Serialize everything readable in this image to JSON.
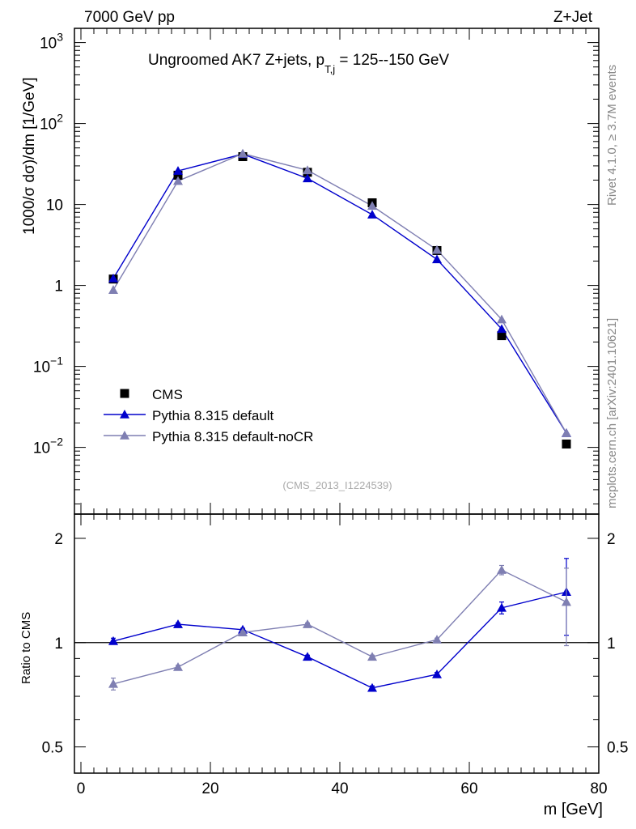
{
  "header": {
    "left": "7000 GeV pp",
    "right": "Z+Jet"
  },
  "side_labels": {
    "rivet": "Rivet 4.1.0, ≥ 3.7M events",
    "mcplots": "mcplots.cern.ch [arXiv:2401.10621]"
  },
  "colors": {
    "cms": "#000000",
    "default": "#0000cc",
    "nocr": "#7f7fb2"
  },
  "chart_data": [
    {
      "type": "line",
      "panel": "main",
      "title_main": "Ungroomed AK7 Z+jets, p",
      "title_sub": "T,j",
      "title_tail": " = 125--150 GeV",
      "ylabel": "1000/σ  dσ)/dm [1/GeV]",
      "yscale": "log",
      "ylim": [
        0.0015,
        1500
      ],
      "xlim": [
        -1,
        80
      ],
      "watermark": "(CMS_2013_I1224539)",
      "x_ticks": [
        0,
        20,
        40,
        60,
        80
      ],
      "y_tick_labels": [
        {
          "value": 1000,
          "base": "10",
          "exp": "3"
        },
        {
          "value": 100,
          "base": "10",
          "exp": "2"
        },
        {
          "value": 10,
          "base": "10",
          "exp": ""
        },
        {
          "value": 1,
          "base": "1",
          "exp": ""
        },
        {
          "value": 0.1,
          "base": "10",
          "exp": "−1"
        },
        {
          "value": 0.01,
          "base": "10",
          "exp": "−2"
        }
      ],
      "x": [
        5,
        15,
        25,
        35,
        45,
        55,
        65,
        75
      ],
      "series": [
        {
          "name": "CMS",
          "key": "cms",
          "marker": "square",
          "values": [
            1.2,
            23,
            39,
            25,
            10.5,
            2.7,
            0.24,
            0.011
          ]
        },
        {
          "name": "Pythia 8.315 default",
          "key": "default",
          "marker": "triangle",
          "values": [
            1.22,
            26,
            42,
            21,
            7.5,
            2.1,
            0.29,
            0.015
          ]
        },
        {
          "name": "Pythia 8.315 default-noCR",
          "key": "nocr",
          "marker": "triangle",
          "values": [
            0.88,
            19.5,
            42.5,
            26.5,
            9.6,
            2.75,
            0.38,
            0.015
          ]
        }
      ],
      "legend": [
        "CMS",
        "Pythia 8.315 default",
        "Pythia 8.315 default-noCR"
      ]
    },
    {
      "type": "line",
      "panel": "ratio",
      "ylabel": "Ratio to CMS",
      "xlabel": "m [GeV]",
      "yscale": "log",
      "ylim": [
        0.42,
        2.35
      ],
      "xlim": [
        -1,
        80
      ],
      "reference": 1,
      "y_tick_labels": [
        {
          "value": 2,
          "label": "2"
        },
        {
          "value": 1,
          "label": "1"
        },
        {
          "value": 0.5,
          "label": "0.5"
        }
      ],
      "x": [
        5,
        15,
        25,
        35,
        45,
        55,
        65,
        75
      ],
      "series": [
        {
          "name": "Pythia 8.315 default",
          "key": "default",
          "values": [
            1.01,
            1.13,
            1.09,
            0.91,
            0.74,
            0.81,
            1.26,
            1.4
          ],
          "err_low": [
            0.02,
            0.01,
            0.01,
            0.01,
            0.01,
            0.01,
            0.05,
            0.35
          ],
          "err_high": [
            0.02,
            0.01,
            0.01,
            0.01,
            0.01,
            0.01,
            0.05,
            0.35
          ]
        },
        {
          "name": "Pythia 8.315 default-noCR",
          "key": "nocr",
          "values": [
            0.76,
            0.85,
            1.07,
            1.13,
            0.91,
            1.02,
            1.62,
            1.31
          ],
          "err_low": [
            0.03,
            0.01,
            0.01,
            0.01,
            0.01,
            0.01,
            0.05,
            0.33
          ],
          "err_high": [
            0.03,
            0.01,
            0.01,
            0.01,
            0.01,
            0.01,
            0.05,
            0.33
          ]
        }
      ]
    }
  ]
}
